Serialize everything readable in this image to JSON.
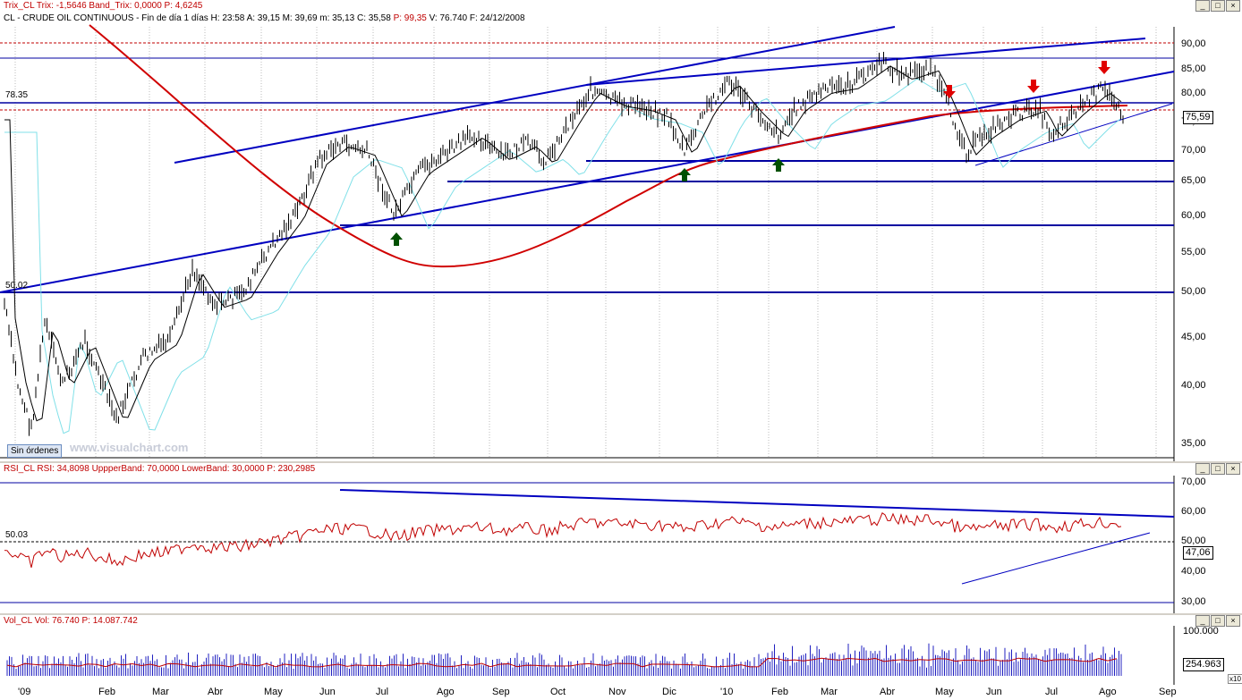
{
  "panels": {
    "main": {
      "title_prefix": "Trix_CL",
      "title_rest": "Trix: -1,5646  Band_Trix: 0,0000  P: 4,6245",
      "subtitle_prefix": "CL - CRUDE OIL CONTINUOUS - Fin de día 1 días",
      "subtitle_values": "H: 23:58  A: 39,15  M: 39,69  m: 35,13  C: 35,58",
      "subtitle_extra": "P: 99,35",
      "subtitle_tail": "V: 76.740  F: 24/12/2008",
      "level_7835": "78.35",
      "level_5002": "50.02",
      "last_price": "75,59",
      "status_badge": "Sin órdenes",
      "watermark": "www.visualchart.com",
      "price_ticks": [
        "90,00",
        "85,00",
        "80,00",
        "75,00",
        "70,00",
        "65,00",
        "60,00",
        "55,00",
        "50,00",
        "45,00",
        "40,00",
        "35,00"
      ]
    },
    "rsi": {
      "title": "RSI_CL  RSI: 34,8098  UppperBand: 70,0000  LowerBand: 30,0000  P: 230,2985",
      "level": "50.03",
      "last_value": "47,06",
      "ticks": [
        "70,00",
        "60,00",
        "50,00",
        "40,00",
        "30,00"
      ]
    },
    "volume": {
      "title": "Vol_CL  Vol: 76.740  P: 14.087.742",
      "tick": "100.000",
      "last_value": "254.963",
      "multiplier": "x10"
    }
  },
  "x_axis": [
    "'09",
    "Feb",
    "Mar",
    "Abr",
    "May",
    "Jun",
    "Jul",
    "Ago",
    "Sep",
    "Oct",
    "Nov",
    "Dic",
    "'10",
    "Feb",
    "Mar",
    "Abr",
    "May",
    "Jun",
    "Jul",
    "Ago",
    "Sep"
  ],
  "window_buttons": {
    "minimize": "_",
    "maximize": "□",
    "close": "×"
  }
}
